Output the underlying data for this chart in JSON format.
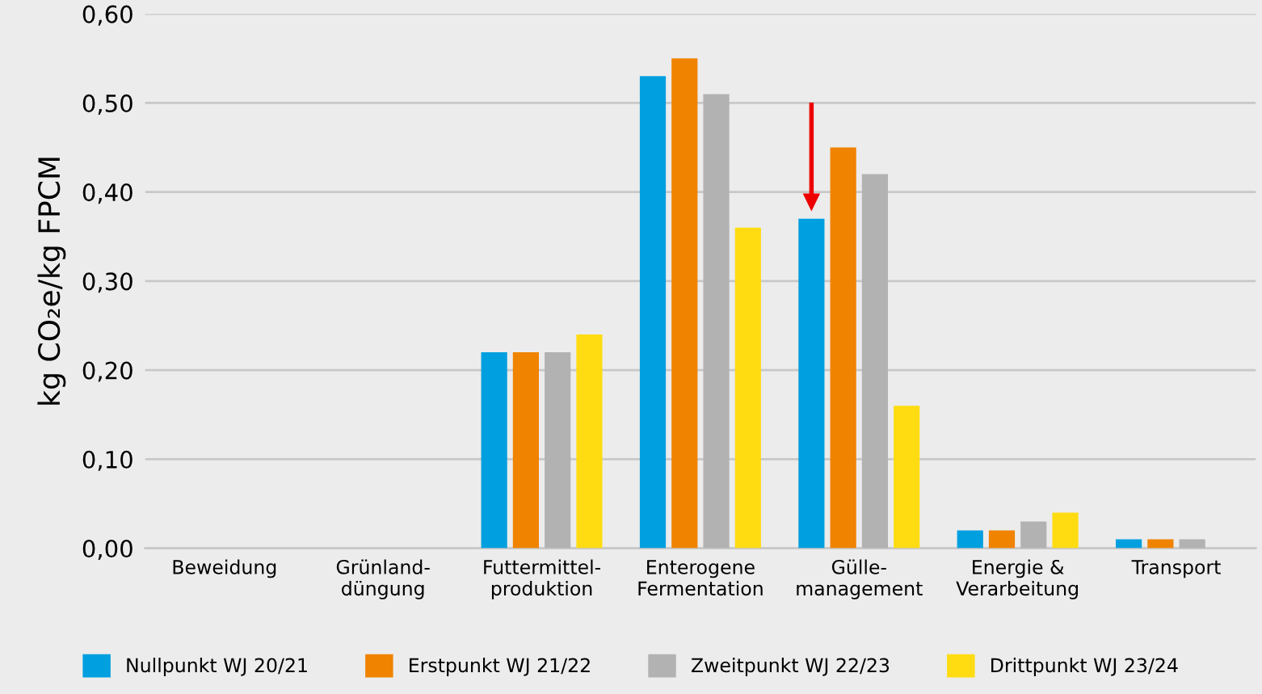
{
  "chart_data": {
    "type": "bar",
    "ylabel": "kg CO₂e/kg FPCM",
    "categories": [
      "Beweidung",
      "Grünland-\ndüngung",
      "Futtermittel-\nproduktion",
      "Enterogene\nFermentation",
      "Gülle-\nmanagement",
      "Energie &\nVerarbeitung",
      "Transport"
    ],
    "series": [
      {
        "name": "Nullpunkt WJ 20/21",
        "color": "#009fdf",
        "values": [
          0,
          0,
          0.22,
          0.53,
          0.37,
          0.02,
          0.01
        ]
      },
      {
        "name": "Erstpunkt WJ 21/22",
        "color": "#f08300",
        "values": [
          0,
          0,
          0.22,
          0.55,
          0.45,
          0.02,
          0.01
        ]
      },
      {
        "name": "Zweitpunkt WJ 22/23",
        "color": "#b2b2b2",
        "values": [
          0,
          0,
          0.22,
          0.51,
          0.42,
          0.03,
          0.01
        ]
      },
      {
        "name": "Drittpunkt WJ 23/24",
        "color": "#ffdc12",
        "values": [
          0,
          0,
          0.24,
          0.36,
          0.16,
          0.04,
          0
        ]
      }
    ],
    "ylim": [
      0,
      0.6
    ],
    "yticks": [
      {
        "value": 0,
        "label": "0,00"
      },
      {
        "value": 0.1,
        "label": "0,10"
      },
      {
        "value": 0.2,
        "label": "0,20"
      },
      {
        "value": 0.3,
        "label": "0,30"
      },
      {
        "value": 0.4,
        "label": "0,40"
      },
      {
        "value": 0.5,
        "label": "0,50"
      },
      {
        "value": 0.6,
        "label": "0,60"
      }
    ],
    "grid": "y",
    "legend": "bottom"
  }
}
